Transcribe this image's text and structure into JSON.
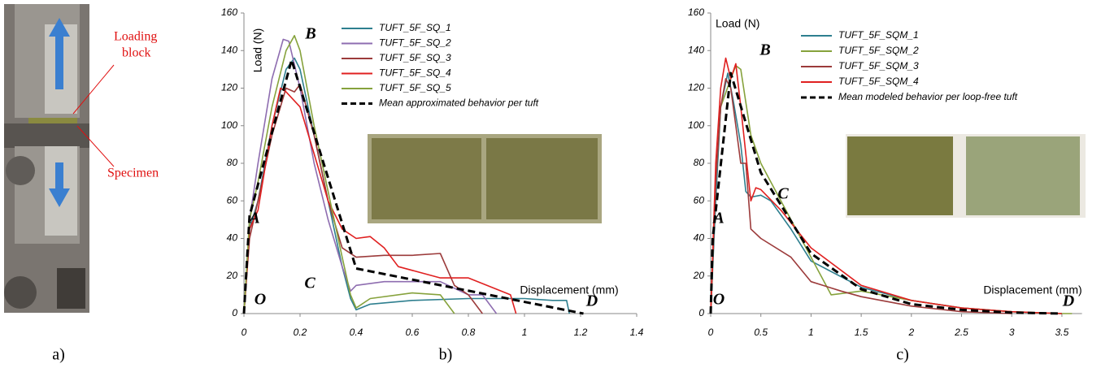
{
  "photo": {
    "label_loading": [
      "Loading",
      "block"
    ],
    "label_specimen": "Specimen",
    "caption": "a)"
  },
  "chart_data": [
    {
      "type": "line",
      "caption": "b)",
      "y_label": "Load (N)",
      "x_label": "Displacement (mm)",
      "xlim": [
        0,
        1.4
      ],
      "xticks": [
        0,
        0.2,
        0.4,
        0.6,
        0.8,
        1,
        1.2,
        1.4
      ],
      "ylim": [
        0,
        160
      ],
      "yticks": [
        0,
        20,
        40,
        60,
        80,
        100,
        120,
        140,
        160
      ],
      "annotations": [
        "O",
        "A",
        "B",
        "C",
        "D"
      ],
      "series": [
        {
          "name": "TUFT_5F_SQ_1",
          "color": "#2e7f8f",
          "x": [
            0,
            0.02,
            0.05,
            0.1,
            0.15,
            0.18,
            0.2,
            0.25,
            0.3,
            0.35,
            0.38,
            0.4,
            0.45,
            0.6,
            0.8,
            1.0,
            1.1,
            1.15,
            1.16
          ],
          "values": [
            0,
            45,
            60,
            100,
            130,
            136,
            130,
            95,
            60,
            25,
            8,
            2,
            5,
            7,
            8,
            8,
            7,
            7,
            0
          ]
        },
        {
          "name": "TUFT_5F_SQ_2",
          "color": "#8e6db0",
          "x": [
            0,
            0.02,
            0.05,
            0.1,
            0.14,
            0.16,
            0.2,
            0.25,
            0.3,
            0.35,
            0.38,
            0.4,
            0.5,
            0.7,
            0.8,
            0.85,
            0.9
          ],
          "values": [
            0,
            50,
            80,
            125,
            146,
            145,
            120,
            80,
            50,
            25,
            12,
            15,
            17,
            17,
            10,
            10,
            0
          ]
        },
        {
          "name": "TUFT_5F_SQ_3",
          "color": "#9c3b3b",
          "x": [
            0,
            0.02,
            0.05,
            0.1,
            0.15,
            0.18,
            0.2,
            0.25,
            0.3,
            0.35,
            0.4,
            0.5,
            0.6,
            0.7,
            0.75,
            0.8,
            0.85
          ],
          "values": [
            0,
            40,
            60,
            95,
            120,
            118,
            122,
            95,
            60,
            35,
            30,
            31,
            31,
            32,
            15,
            10,
            0
          ]
        },
        {
          "name": "TUFT_5F_SQ_4",
          "color": "#e02020",
          "x": [
            0,
            0.02,
            0.05,
            0.1,
            0.13,
            0.15,
            0.2,
            0.25,
            0.3,
            0.35,
            0.4,
            0.45,
            0.5,
            0.55,
            0.7,
            0.8,
            0.95,
            0.97
          ],
          "values": [
            0,
            45,
            55,
            100,
            120,
            118,
            110,
            85,
            60,
            45,
            40,
            41,
            35,
            25,
            19,
            19,
            10,
            0
          ]
        },
        {
          "name": "TUFT_5F_SQ_5",
          "color": "#86a23c",
          "x": [
            0,
            0.02,
            0.05,
            0.1,
            0.15,
            0.18,
            0.2,
            0.25,
            0.3,
            0.35,
            0.38,
            0.4,
            0.45,
            0.6,
            0.7,
            0.75
          ],
          "values": [
            0,
            50,
            70,
            110,
            140,
            148,
            140,
            100,
            65,
            30,
            10,
            3,
            8,
            11,
            10,
            0
          ]
        },
        {
          "name": "Mean approximated behavior per tuft",
          "color": "#000000",
          "dashed": true,
          "x": [
            0,
            0.02,
            0.17,
            0.4,
            1.21
          ],
          "values": [
            0,
            52,
            135,
            24,
            0
          ]
        }
      ]
    },
    {
      "type": "line",
      "caption": "c)",
      "y_label": "Load (N)",
      "x_label": "Displacement (mm)",
      "xlim": [
        0,
        3.7
      ],
      "xticks": [
        0,
        0.5,
        1,
        1.5,
        2,
        2.5,
        3,
        3.5
      ],
      "ylim": [
        0,
        160
      ],
      "yticks": [
        0,
        20,
        40,
        60,
        80,
        100,
        120,
        140,
        160
      ],
      "annotations": [
        "O",
        "A",
        "B",
        "C",
        "D"
      ],
      "series": [
        {
          "name": "TUFT_5F_SQM_1",
          "color": "#2e7f8f",
          "x": [
            0,
            0.05,
            0.1,
            0.17,
            0.22,
            0.3,
            0.35,
            0.4,
            0.5,
            0.6,
            0.8,
            1.0,
            1.5,
            2.0,
            2.5,
            3.0,
            3.5
          ],
          "values": [
            0,
            60,
            110,
            128,
            115,
            90,
            65,
            62,
            63,
            60,
            45,
            28,
            14,
            7,
            3,
            1,
            0
          ]
        },
        {
          "name": "TUFT_5F_SQM_2",
          "color": "#86a23c",
          "x": [
            0,
            0.05,
            0.1,
            0.2,
            0.25,
            0.3,
            0.4,
            0.5,
            0.6,
            0.8,
            1.0,
            1.2,
            1.5,
            2.0,
            2.5,
            3.0,
            3.5,
            3.6
          ],
          "values": [
            0,
            70,
            110,
            125,
            132,
            130,
            95,
            80,
            70,
            50,
            30,
            10,
            12,
            7,
            3,
            1,
            0,
            0
          ]
        },
        {
          "name": "TUFT_5F_SQM_3",
          "color": "#9c3b3b",
          "x": [
            0,
            0.05,
            0.1,
            0.15,
            0.2,
            0.25,
            0.3,
            0.35,
            0.4,
            0.5,
            0.8,
            1.0,
            1.3,
            1.5,
            2.0,
            2.5,
            3.0
          ],
          "values": [
            0,
            70,
            110,
            125,
            120,
            100,
            80,
            80,
            45,
            40,
            30,
            17,
            12,
            9,
            4,
            1,
            0
          ]
        },
        {
          "name": "TUFT_5F_SQM_4",
          "color": "#e02020",
          "x": [
            0,
            0.05,
            0.1,
            0.15,
            0.2,
            0.25,
            0.3,
            0.4,
            0.45,
            0.5,
            0.7,
            1.0,
            1.5,
            2.0,
            2.5,
            3.0,
            3.5
          ],
          "values": [
            0,
            80,
            120,
            136,
            125,
            133,
            110,
            60,
            67,
            66,
            55,
            35,
            15,
            7,
            3,
            1,
            0
          ]
        },
        {
          "name": "Mean modeled behavior per loop-free tuft",
          "color": "#000000",
          "dashed": true,
          "x": [
            0,
            0.02,
            0.2,
            0.5,
            1.0,
            1.5,
            2.0,
            2.5,
            3.0,
            3.5
          ],
          "values": [
            0,
            40,
            128,
            75,
            32,
            13,
            5,
            2,
            0.5,
            0
          ]
        }
      ]
    }
  ]
}
